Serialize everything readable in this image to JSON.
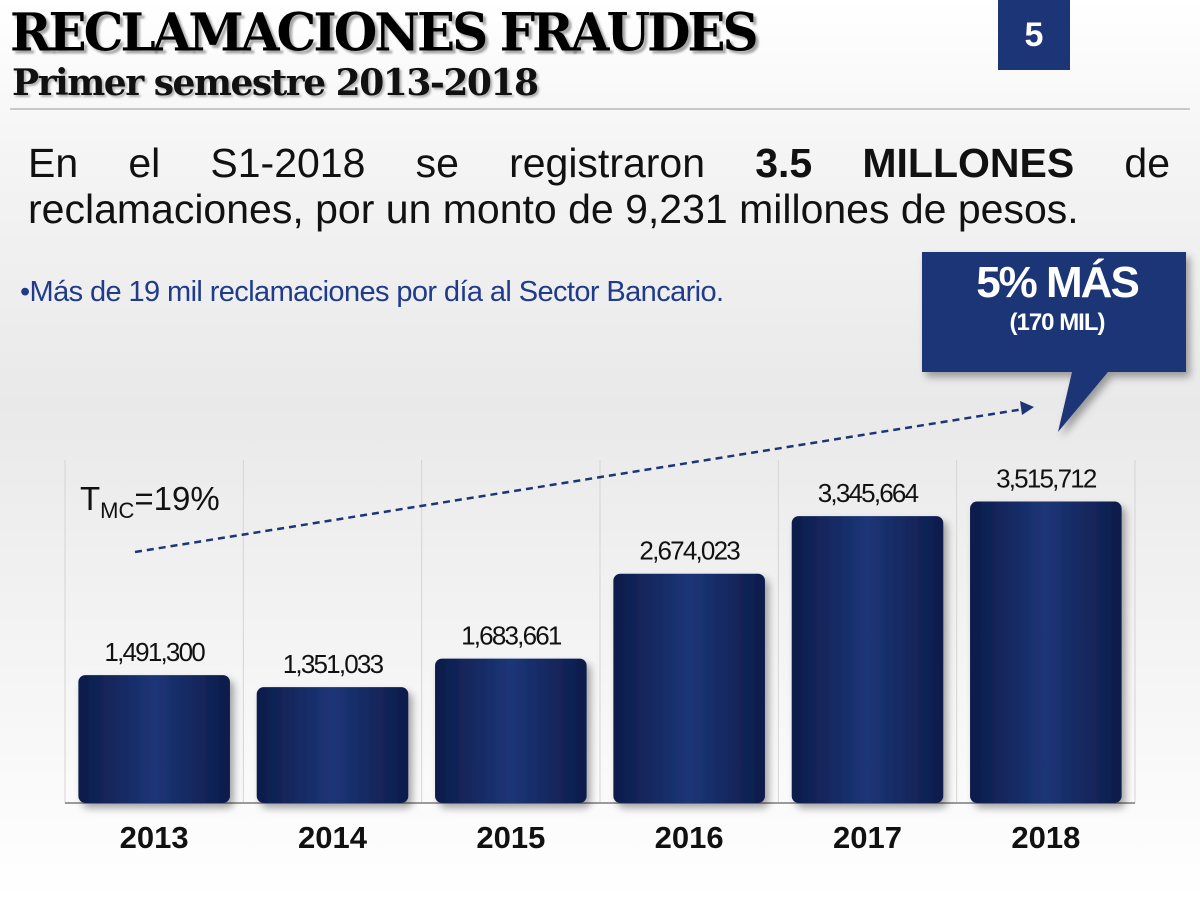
{
  "page": {
    "title": "RECLAMACIONES FRAUDES",
    "subtitle": "Primer semestre 2013-2018",
    "page_number": "5"
  },
  "headline": {
    "part1": "En el S1-2018 se registraron ",
    "bold": "3.5 MILLONES",
    "part2": " de reclamaciones, por un monto de 9,231 millones de pesos."
  },
  "bullet": "•Más de 19 mil reclamaciones por día al Sector Bancario.",
  "callout": {
    "main": "5% MÁS",
    "sub": "(170 MIL)"
  },
  "trend": {
    "label_prefix": "T",
    "label_sub": "MC",
    "label_value": "=19%"
  },
  "colors": {
    "bar": "#1c3577",
    "accent": "#1f3b8a"
  },
  "chart_data": {
    "type": "bar",
    "categories": [
      "2013",
      "2014",
      "2015",
      "2016",
      "2017",
      "2018"
    ],
    "values": [
      1491300,
      1351033,
      1683661,
      2674023,
      3345664,
      3515712
    ],
    "data_labels": [
      "1,491,300",
      "1,351,033",
      "1,683,661",
      "2,674,023",
      "3,345,664",
      "3,515,712"
    ],
    "title": "",
    "xlabel": "",
    "ylabel": "",
    "ylim": [
      0,
      4000000
    ],
    "grid": true,
    "legend": "none"
  }
}
